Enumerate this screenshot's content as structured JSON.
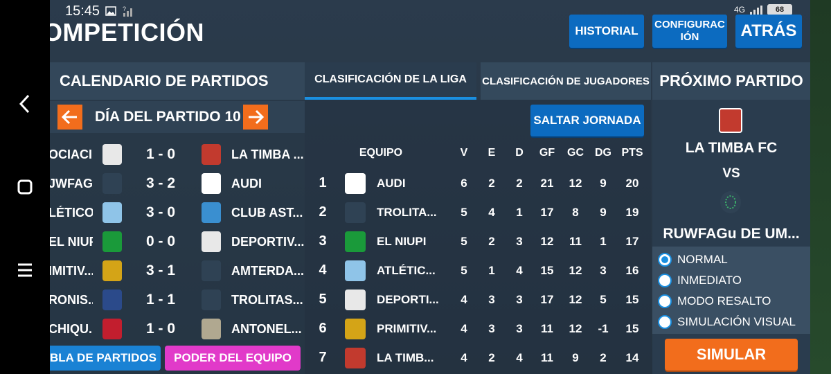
{
  "status_bar": {
    "time": "15:45",
    "network": "4G",
    "battery": "68"
  },
  "header": {
    "title": "OMPETICIÓN",
    "historial": "HISTORIAL",
    "configuracion_line1": "CONFIGURAC",
    "configuracion_line2": "IÓN",
    "atras": "ATRÁS"
  },
  "calendar": {
    "title": "CALENDARIO DE PARTIDOS",
    "day_label": "DÍA DEL PARTIDO 10",
    "matches": [
      {
        "home": "OCIACI...",
        "score": "1 - 0",
        "away": "LA TIMBA ...",
        "home_color": "#e8e8e8",
        "away_color": "#c23a2e"
      },
      {
        "home": "JWFAGu ...",
        "score": "3 - 2",
        "away": "AUDI",
        "home_color": "#2f4254",
        "away_color": "#ffffff"
      },
      {
        "home": "LÉTICO...",
        "score": "3 - 0",
        "away": "CLUB AST...",
        "home_color": "#8fc4e8",
        "away_color": "#3a8fd0"
      },
      {
        "home": "EL NIUPI",
        "score": "0 - 0",
        "away": "DEPORTIV...",
        "home_color": "#1a9a3a",
        "away_color": "#e8e8e8"
      },
      {
        "home": "IMITIV...",
        "score": "3 - 1",
        "away": "AMTERDA...",
        "home_color": "#d4a417",
        "away_color": "#2f4254"
      },
      {
        "home": "RONIS...",
        "score": "1 - 1",
        "away": "TROLITAS...",
        "home_color": "#2b4a8a",
        "away_color": "#2f4254"
      },
      {
        "home": "CHIQU...",
        "score": "1 - 0",
        "away": "ANTONEL...",
        "home_color": "#c21e2e",
        "away_color": "#b0a890"
      }
    ],
    "tabla_btn": "BLA DE PARTIDOS",
    "poder_btn": "PODER DEL EQUIPO"
  },
  "tabs": {
    "liga": "CLASIFICACIÓN DE LA LIGA",
    "jugadores": "CLASIFICACIÓN DE JUGADORES"
  },
  "standings": {
    "skip": "SALTAR JORNADA",
    "headers": {
      "team": "EQUIPO",
      "v": "V",
      "e": "E",
      "d": "D",
      "gf": "GF",
      "gc": "GC",
      "dg": "DG",
      "pts": "PTS"
    },
    "rows": [
      {
        "pos": "1",
        "team": "AUDI",
        "v": "6",
        "e": "2",
        "d": "2",
        "gf": "21",
        "gc": "12",
        "dg": "9",
        "pts": "20",
        "color": "#ffffff"
      },
      {
        "pos": "2",
        "team": "TROLITA...",
        "v": "5",
        "e": "4",
        "d": "1",
        "gf": "17",
        "gc": "8",
        "dg": "9",
        "pts": "19",
        "color": "#2f4254"
      },
      {
        "pos": "3",
        "team": "EL NIUPI",
        "v": "5",
        "e": "2",
        "d": "3",
        "gf": "12",
        "gc": "11",
        "dg": "1",
        "pts": "17",
        "color": "#1a9a3a"
      },
      {
        "pos": "4",
        "team": "ATLÉTIC...",
        "v": "5",
        "e": "1",
        "d": "4",
        "gf": "15",
        "gc": "12",
        "dg": "3",
        "pts": "16",
        "color": "#8fc4e8"
      },
      {
        "pos": "5",
        "team": "DEPORTI...",
        "v": "4",
        "e": "3",
        "d": "3",
        "gf": "17",
        "gc": "12",
        "dg": "5",
        "pts": "15",
        "color": "#e8e8e8"
      },
      {
        "pos": "6",
        "team": "PRIMITIV...",
        "v": "4",
        "e": "3",
        "d": "3",
        "gf": "11",
        "gc": "12",
        "dg": "-1",
        "pts": "15",
        "color": "#d4a417"
      },
      {
        "pos": "7",
        "team": "LA TIMB...",
        "v": "4",
        "e": "2",
        "d": "4",
        "gf": "11",
        "gc": "9",
        "dg": "2",
        "pts": "14",
        "color": "#c23a2e"
      }
    ]
  },
  "next_match": {
    "title": "PRÓXIMO PARTIDO",
    "home": "LA TIMBA FC",
    "vs": "VS",
    "away": "RUWFAGu DE UM..."
  },
  "sim_options": [
    "NORMAL",
    "INMEDIATO",
    "MODO RESALTO",
    "SIMULACIÓN VISUAL"
  ],
  "sim_selected": "NORMAL",
  "simulate": "SIMULAR"
}
